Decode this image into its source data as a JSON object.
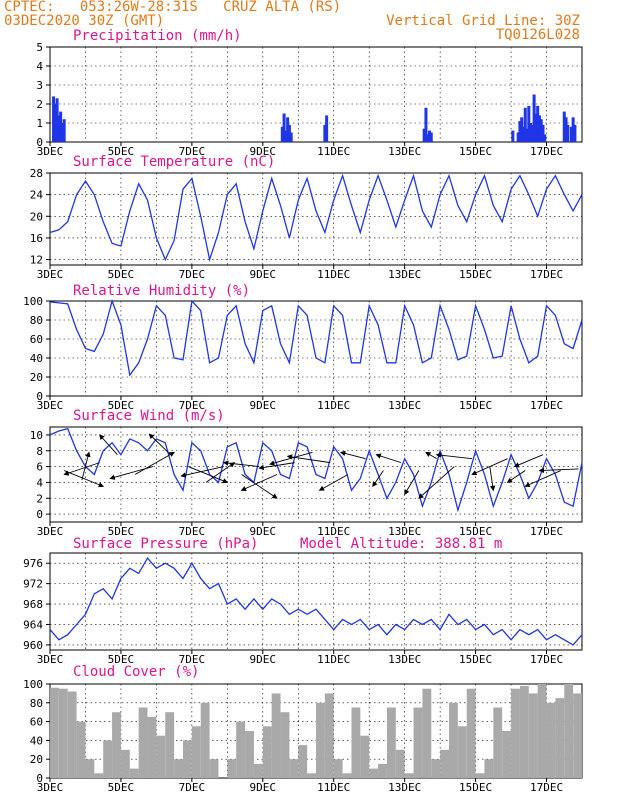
{
  "header": {
    "line1_left": "CPTEC:   053:26W-28:31S   CRUZ ALTA (RS)",
    "line2_left": "03DEC2020 30Z (GMT)",
    "right1": "Vertical Grid Line: 30Z",
    "right2": "TQ0126L028"
  },
  "colors": {
    "header": "#e07a1a",
    "title": "#e0158c",
    "line": "#1f35e6",
    "bar": "#1f35e6",
    "cloud": "#a9a9a9",
    "axis": "#000000",
    "grid": "#000000"
  },
  "x_ticks": [
    "3DEC",
    "5DEC",
    "7DEC",
    "9DEC",
    "11DEC",
    "13DEC",
    "15DEC",
    "17DEC"
  ],
  "x_range_days": [
    3,
    18
  ],
  "chart_data": [
    {
      "id": "precip",
      "type": "bar",
      "title": "Precipitation (mm/h)",
      "ylim": [
        0,
        5
      ],
      "yticks": [
        "0",
        "1",
        "2",
        "3",
        "4",
        "5"
      ],
      "x": [
        3.1,
        3.15,
        3.2,
        3.25,
        3.3,
        3.35,
        3.4,
        9.55,
        9.6,
        9.65,
        9.7,
        9.75,
        9.8,
        10.75,
        10.8,
        13.55,
        13.6,
        13.65,
        13.7,
        13.75,
        16.05,
        16.2,
        16.25,
        16.3,
        16.35,
        16.4,
        16.45,
        16.5,
        16.55,
        16.6,
        16.65,
        16.7,
        16.75,
        16.8,
        16.85,
        16.9,
        16.95,
        17.5,
        17.55,
        17.6,
        17.7,
        17.75,
        17.8
      ],
      "values": [
        2.4,
        2.0,
        2.3,
        1.4,
        1.6,
        1.0,
        1.2,
        0.8,
        1.5,
        0.6,
        1.3,
        0.9,
        0.5,
        0.9,
        1.4,
        0.7,
        1.8,
        0.4,
        0.6,
        0.5,
        0.6,
        0.5,
        1.1,
        1.3,
        0.8,
        1.8,
        0.7,
        1.9,
        1.0,
        0.9,
        2.5,
        1.5,
        1.9,
        1.4,
        1.2,
        0.9,
        0.4,
        1.6,
        1.3,
        0.9,
        0.8,
        1.3,
        0.9
      ]
    },
    {
      "id": "temp",
      "type": "line",
      "title": "Surface Temperature (nC)",
      "ylim": [
        11,
        28
      ],
      "yticks": [
        "12",
        "16",
        "20",
        "24",
        "28"
      ],
      "ytick_values": [
        12,
        16,
        20,
        24,
        28
      ],
      "x": [
        3.0,
        3.25,
        3.5,
        3.75,
        4.0,
        4.25,
        4.5,
        4.75,
        5.0,
        5.25,
        5.5,
        5.75,
        6.0,
        6.25,
        6.5,
        6.75,
        7.0,
        7.25,
        7.5,
        7.75,
        8.0,
        8.25,
        8.5,
        8.75,
        9.0,
        9.25,
        9.5,
        9.75,
        10.0,
        10.25,
        10.5,
        10.75,
        11.0,
        11.25,
        11.5,
        11.75,
        12.0,
        12.25,
        12.5,
        12.75,
        13.0,
        13.25,
        13.5,
        13.75,
        14.0,
        14.25,
        14.5,
        14.75,
        15.0,
        15.25,
        15.5,
        15.75,
        16.0,
        16.25,
        16.5,
        16.75,
        17.0,
        17.25,
        17.5,
        17.75,
        18.0
      ],
      "values": [
        17,
        17.5,
        19,
        24,
        26.5,
        24,
        19,
        15,
        14.5,
        21,
        26,
        23,
        16,
        12,
        15.5,
        25,
        27,
        20,
        12,
        17,
        24,
        26,
        19,
        14,
        21,
        27,
        22,
        16,
        23,
        27,
        21,
        17,
        23,
        27.5,
        22,
        17,
        23,
        27.5,
        23,
        18,
        23,
        27.5,
        21,
        18,
        24,
        27.5,
        22,
        19,
        24,
        27.5,
        22,
        19,
        25,
        27.5,
        24,
        20,
        25,
        27.5,
        24,
        21,
        24
      ]
    },
    {
      "id": "rh",
      "type": "line",
      "title": "Relative Humidity (%)",
      "ylim": [
        0,
        100
      ],
      "yticks": [
        "0",
        "20",
        "40",
        "60",
        "80",
        "100"
      ],
      "ytick_values": [
        0,
        20,
        40,
        60,
        80,
        100
      ],
      "x": [
        3.0,
        3.25,
        3.5,
        3.75,
        4.0,
        4.25,
        4.5,
        4.75,
        5.0,
        5.25,
        5.5,
        5.75,
        6.0,
        6.25,
        6.5,
        6.75,
        7.0,
        7.25,
        7.5,
        7.75,
        8.0,
        8.25,
        8.5,
        8.75,
        9.0,
        9.25,
        9.5,
        9.75,
        10.0,
        10.25,
        10.5,
        10.75,
        11.0,
        11.25,
        11.5,
        11.75,
        12.0,
        12.25,
        12.5,
        12.75,
        13.0,
        13.25,
        13.5,
        13.75,
        14.0,
        14.25,
        14.5,
        14.75,
        15.0,
        15.25,
        15.5,
        15.75,
        16.0,
        16.25,
        16.5,
        16.75,
        17.0,
        17.25,
        17.5,
        17.75,
        18.0
      ],
      "values": [
        99,
        98,
        97,
        70,
        50,
        47,
        65,
        100,
        75,
        22,
        35,
        60,
        95,
        85,
        40,
        38,
        100,
        90,
        35,
        40,
        85,
        95,
        55,
        35,
        90,
        95,
        55,
        35,
        95,
        85,
        40,
        35,
        95,
        85,
        35,
        35,
        95,
        75,
        35,
        35,
        95,
        75,
        35,
        40,
        95,
        70,
        38,
        42,
        95,
        70,
        40,
        42,
        95,
        60,
        35,
        42,
        95,
        85,
        55,
        50,
        80
      ]
    },
    {
      "id": "wind",
      "type": "line",
      "title": "Surface Wind (m/s)",
      "ylim": [
        -1,
        11
      ],
      "yticks": [
        "0",
        "2",
        "4",
        "6",
        "8",
        "10"
      ],
      "ytick_values": [
        0,
        2,
        4,
        6,
        8,
        10
      ],
      "x": [
        3.0,
        3.25,
        3.5,
        3.75,
        4.0,
        4.25,
        4.5,
        4.75,
        5.0,
        5.25,
        5.5,
        5.75,
        6.0,
        6.25,
        6.5,
        6.75,
        7.0,
        7.25,
        7.5,
        7.75,
        8.0,
        8.25,
        8.5,
        8.75,
        9.0,
        9.25,
        9.5,
        9.75,
        10.0,
        10.25,
        10.5,
        10.75,
        11.0,
        11.25,
        11.5,
        11.75,
        12.0,
        12.25,
        12.5,
        12.75,
        13.0,
        13.25,
        13.5,
        13.75,
        14.0,
        14.25,
        14.5,
        14.75,
        15.0,
        15.25,
        15.5,
        15.75,
        16.0,
        16.25,
        16.5,
        16.75,
        17.0,
        17.25,
        17.5,
        17.75,
        18.0
      ],
      "values": [
        10,
        10.5,
        10.8,
        8,
        6,
        5,
        8,
        9,
        7.5,
        9.5,
        9,
        8,
        9.5,
        9,
        5,
        3,
        9,
        8,
        5,
        4,
        8.5,
        9,
        5,
        4,
        9,
        8,
        5,
        4.5,
        9,
        8.5,
        5,
        4.5,
        8.5,
        7,
        3,
        4.5,
        8,
        5,
        2,
        4,
        7,
        5,
        1,
        4,
        8,
        5,
        0.5,
        4,
        8,
        5,
        1,
        4,
        7.5,
        5,
        2,
        4,
        7,
        5,
        1.5,
        1,
        6.5
      ],
      "arrows": [
        {
          "x": 3.4,
          "y": 5.5,
          "dx": 1.1,
          "dy": -2
        },
        {
          "x": 3.9,
          "y": 4.3,
          "dx": 0.2,
          "dy": 3.5
        },
        {
          "x": 4.4,
          "y": 6.5,
          "dx": -1.0,
          "dy": -1.5
        },
        {
          "x": 4.9,
          "y": 7.5,
          "dx": -0.5,
          "dy": 2.5
        },
        {
          "x": 5.4,
          "y": 5,
          "dx": 1.1,
          "dy": 2.8
        },
        {
          "x": 5.9,
          "y": 6,
          "dx": -1.2,
          "dy": -1.5
        },
        {
          "x": 6.4,
          "y": 7.5,
          "dx": -0.6,
          "dy": 2.6
        },
        {
          "x": 6.9,
          "y": 6,
          "dx": 1.1,
          "dy": -2.0
        },
        {
          "x": 7.4,
          "y": 4,
          "dx": 0.8,
          "dy": 2.5
        },
        {
          "x": 7.9,
          "y": 6,
          "dx": -1.2,
          "dy": -1.2
        },
        {
          "x": 8.4,
          "y": 5,
          "dx": 1.0,
          "dy": -3.0
        },
        {
          "x": 8.9,
          "y": 6,
          "dx": -1.0,
          "dy": 0.5
        },
        {
          "x": 9.4,
          "y": 5,
          "dx": -1.0,
          "dy": -2.0
        },
        {
          "x": 9.9,
          "y": 6.5,
          "dx": -1.0,
          "dy": -0.7
        },
        {
          "x": 10.4,
          "y": 7.8,
          "dx": -1.2,
          "dy": -1.5
        },
        {
          "x": 10.9,
          "y": 6.5,
          "dx": -1.2,
          "dy": 0.8
        },
        {
          "x": 11.4,
          "y": 5,
          "dx": -0.8,
          "dy": -2.0
        },
        {
          "x": 11.9,
          "y": 7,
          "dx": -0.7,
          "dy": 0.8
        },
        {
          "x": 12.4,
          "y": 5.5,
          "dx": -0.3,
          "dy": -2.0
        },
        {
          "x": 12.9,
          "y": 6.5,
          "dx": -0.7,
          "dy": 1.0
        },
        {
          "x": 13.4,
          "y": 5.5,
          "dx": -0.4,
          "dy": -3.0
        },
        {
          "x": 13.9,
          "y": 7,
          "dx": -0.3,
          "dy": 0.8
        },
        {
          "x": 14.4,
          "y": 6,
          "dx": -1.0,
          "dy": -4.0
        },
        {
          "x": 14.9,
          "y": 7,
          "dx": -1.0,
          "dy": 0.5
        },
        {
          "x": 15.4,
          "y": 6,
          "dx": 0.1,
          "dy": -3.0
        },
        {
          "x": 15.9,
          "y": 7,
          "dx": -1.0,
          "dy": -2.0
        },
        {
          "x": 16.4,
          "y": 5.5,
          "dx": -0.5,
          "dy": -1.5
        },
        {
          "x": 16.9,
          "y": 7.5,
          "dx": -0.8,
          "dy": -1.5
        },
        {
          "x": 17.4,
          "y": 5.5,
          "dx": -1.0,
          "dy": -2.0
        },
        {
          "x": 17.9,
          "y": 5.7,
          "dx": -1.1,
          "dy": -0.2
        }
      ]
    },
    {
      "id": "pressure",
      "type": "line",
      "title": "Surface Pressure (hPa)",
      "annotation": "Model Altitude: 388.81 m",
      "ylim": [
        959,
        978
      ],
      "yticks": [
        "960",
        "964",
        "968",
        "972",
        "976"
      ],
      "ytick_values": [
        960,
        964,
        968,
        972,
        976
      ],
      "x": [
        3.0,
        3.25,
        3.5,
        3.75,
        4.0,
        4.25,
        4.5,
        4.75,
        5.0,
        5.25,
        5.5,
        5.75,
        6.0,
        6.25,
        6.5,
        6.75,
        7.0,
        7.25,
        7.5,
        7.75,
        8.0,
        8.25,
        8.5,
        8.75,
        9.0,
        9.25,
        9.5,
        9.75,
        10.0,
        10.25,
        10.5,
        10.75,
        11.0,
        11.25,
        11.5,
        11.75,
        12.0,
        12.25,
        12.5,
        12.75,
        13.0,
        13.25,
        13.5,
        13.75,
        14.0,
        14.25,
        14.5,
        14.75,
        15.0,
        15.25,
        15.5,
        15.75,
        16.0,
        16.25,
        16.5,
        16.75,
        17.0,
        17.25,
        17.5,
        17.75,
        18.0
      ],
      "values": [
        963,
        961,
        962,
        964,
        966,
        970,
        971,
        969,
        973,
        975,
        974,
        977,
        975,
        976,
        975,
        973,
        976,
        973,
        971,
        972,
        968,
        969,
        967,
        969,
        967,
        969,
        968,
        966,
        967,
        966,
        967,
        965,
        963,
        965,
        964,
        965,
        963,
        964,
        962,
        964,
        963,
        965,
        964,
        965,
        963,
        966,
        964,
        965,
        963,
        964,
        962,
        963,
        961,
        963,
        962,
        963,
        961,
        962,
        961,
        960,
        962
      ]
    },
    {
      "id": "cloud",
      "type": "area",
      "title": "Cloud Cover (%)",
      "ylim": [
        0,
        100
      ],
      "yticks": [
        "0",
        "20",
        "40",
        "60",
        "80",
        "100"
      ],
      "ytick_values": [
        0,
        20,
        40,
        60,
        80,
        100
      ],
      "x": [
        3.0,
        3.25,
        3.5,
        3.75,
        4.0,
        4.25,
        4.5,
        4.75,
        5.0,
        5.25,
        5.5,
        5.75,
        6.0,
        6.25,
        6.5,
        6.75,
        7.0,
        7.25,
        7.5,
        7.75,
        8.0,
        8.25,
        8.5,
        8.75,
        9.0,
        9.25,
        9.5,
        9.75,
        10.0,
        10.25,
        10.5,
        10.75,
        11.0,
        11.25,
        11.5,
        11.75,
        12.0,
        12.25,
        12.5,
        12.75,
        13.0,
        13.25,
        13.5,
        13.75,
        14.0,
        14.25,
        14.5,
        14.75,
        15.0,
        15.25,
        15.5,
        15.75,
        16.0,
        16.25,
        16.5,
        16.75,
        17.0,
        17.25,
        17.5,
        17.75,
        18.0
      ],
      "values": [
        96,
        95,
        92,
        60,
        20,
        5,
        40,
        70,
        30,
        10,
        75,
        65,
        45,
        70,
        20,
        40,
        55,
        80,
        20,
        0,
        20,
        60,
        50,
        15,
        55,
        90,
        70,
        20,
        35,
        5,
        80,
        90,
        20,
        5,
        75,
        45,
        10,
        15,
        75,
        30,
        5,
        75,
        95,
        20,
        30,
        80,
        55,
        95,
        5,
        20,
        75,
        50,
        95,
        98,
        90,
        100,
        80,
        85,
        100,
        90,
        95
      ]
    }
  ]
}
